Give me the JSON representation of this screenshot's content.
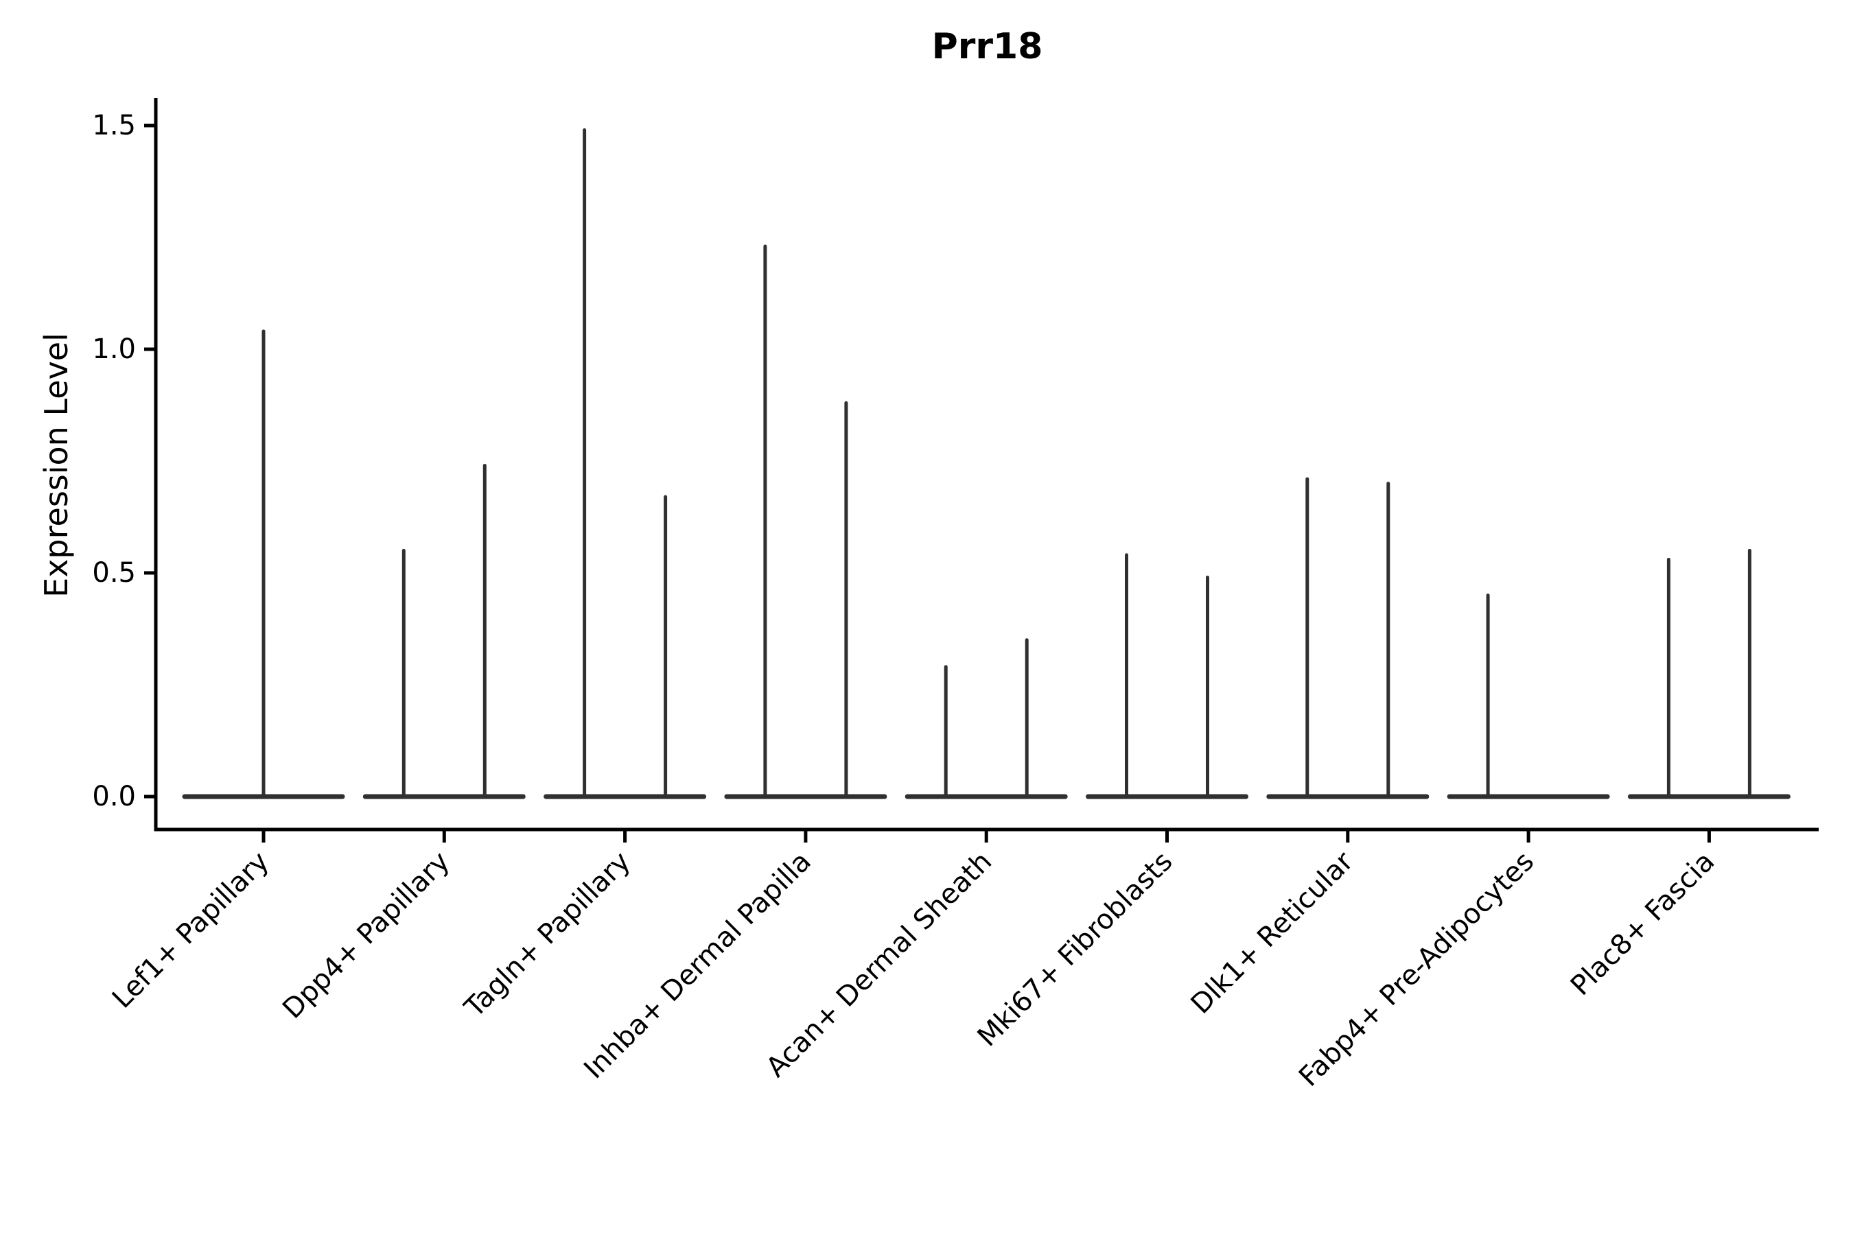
{
  "figure": {
    "title": "Prr18",
    "ylabel": "Expression Level"
  },
  "chart_data": {
    "type": "violin",
    "title": "Prr18",
    "xlabel": "",
    "ylabel": "Expression Level",
    "yticks": [
      0.0,
      0.5,
      1.0,
      1.5
    ],
    "ylim": [
      -0.074,
      1.56
    ],
    "grid": false,
    "legend": "none",
    "background": "#ffffff",
    "violin_color": "#303030",
    "axis_color": "#000000",
    "dodge_fraction": 0.225,
    "description": "Degenerate violins: wide flat base at expression 0 with a thin density spike rising to the maximum expression value; most clusters contain two side-by-side split violins.",
    "categories": [
      "Lef1+ Papillary",
      "Dpp4+ Papillary",
      "Tagln+ Papillary",
      "Inhba+ Dermal Papilla",
      "Acan+ Dermal Sheath",
      "Mki67+ Fibroblasts",
      "Dlk1+ Reticular",
      "Fabp4+ Pre-Adipocytes",
      "Plac8+ Fascia"
    ],
    "violins": [
      {
        "category": "Lef1+ Papillary",
        "split": false,
        "max_values": [
          1.04
        ]
      },
      {
        "category": "Dpp4+ Papillary",
        "split": true,
        "max_values": [
          0.55,
          0.74
        ]
      },
      {
        "category": "Tagln+ Papillary",
        "split": true,
        "max_values": [
          1.49,
          0.67
        ]
      },
      {
        "category": "Inhba+ Dermal Papilla",
        "split": true,
        "max_values": [
          1.23,
          0.88
        ]
      },
      {
        "category": "Acan+ Dermal Sheath",
        "split": true,
        "max_values": [
          0.29,
          0.35
        ]
      },
      {
        "category": "Mki67+ Fibroblasts",
        "split": true,
        "max_values": [
          0.54,
          0.49
        ]
      },
      {
        "category": "Dlk1+ Reticular",
        "split": true,
        "max_values": [
          0.71,
          0.7
        ]
      },
      {
        "category": "Fabp4+ Pre-Adipocytes",
        "split": true,
        "max_values": [
          0.45,
          0
        ]
      },
      {
        "category": "Plac8+ Fascia",
        "split": true,
        "max_values": [
          0.53,
          0.55
        ]
      }
    ]
  }
}
